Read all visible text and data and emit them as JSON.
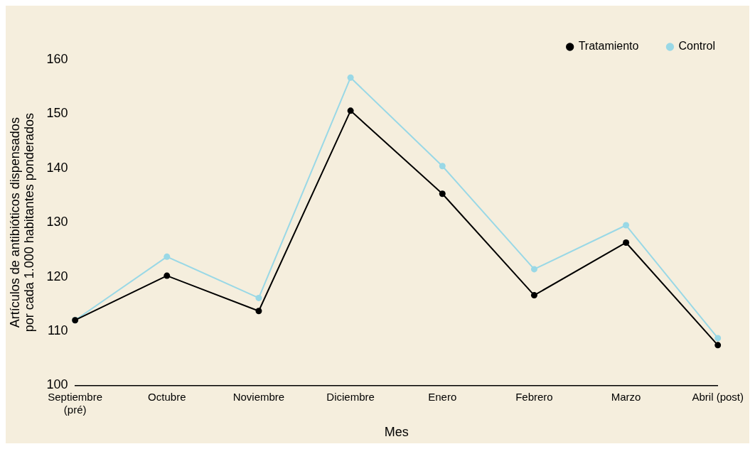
{
  "chart_data": {
    "type": "line",
    "xlabel": "Mes",
    "ylabel": "Artículos de antibióticos dispensados por cada 1.000 habitantes ponderados",
    "categories": [
      "Septiembre (pré)",
      "Octubre",
      "Noviembre",
      "Diciembre",
      "Enero",
      "Febrero",
      "Marzo",
      "Abril (post)"
    ],
    "series": [
      {
        "name": "Control",
        "color": "#99d8e6",
        "values": [
          112.0,
          123.7,
          116.1,
          156.7,
          140.4,
          121.4,
          129.5,
          108.7
        ]
      },
      {
        "name": "Tratamiento",
        "color": "#000000",
        "values": [
          112.0,
          120.2,
          113.7,
          150.6,
          135.3,
          116.6,
          126.3,
          107.4
        ]
      }
    ],
    "ylim": [
      100,
      160
    ],
    "yticks": [
      100,
      110,
      120,
      130,
      140,
      150,
      160
    ],
    "grid": false,
    "legend": "top right",
    "marker": "circle",
    "line_style": "solid"
  }
}
